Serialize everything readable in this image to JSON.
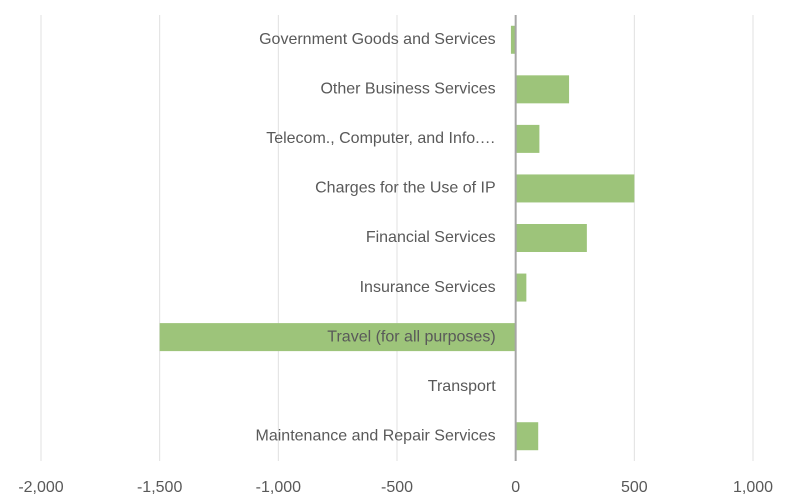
{
  "chart_data": {
    "type": "hbar",
    "categories": [
      "Government Goods and Services",
      "Other Business Services",
      "Telecom., Computer, and Info.…",
      "Charges for the Use of IP",
      "Financial Services",
      "Insurance Services",
      "Travel (for all purposes)",
      "Transport",
      "Maintenance and Repair Services"
    ],
    "values": [
      -20,
      225,
      100,
      500,
      300,
      45,
      -1500,
      0,
      95
    ],
    "color": "#9dc47a",
    "xlim": [
      -2000,
      1000
    ],
    "xticks": [
      {
        "value": -2000,
        "label": "-2,000"
      },
      {
        "value": -1500,
        "label": "-1,500"
      },
      {
        "value": -1000,
        "label": "-1,000"
      },
      -500,
      0,
      500,
      {
        "value": 1000,
        "label": "1,000"
      }
    ],
    "grid": true
  }
}
